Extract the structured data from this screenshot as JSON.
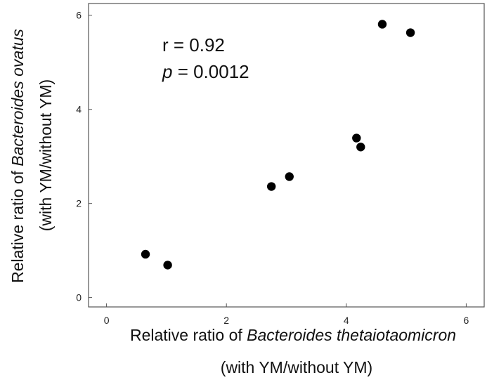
{
  "chart_data": {
    "type": "scatter",
    "title": "",
    "xlabel": {
      "line1_prefix": "Relative ratio of ",
      "line1_italic": "Bacteroides thetaiotaomicron",
      "line2": "(with YM/without YM)"
    },
    "ylabel": {
      "line1_prefix": "Relative ratio of ",
      "line1_italic": "Bacteroides ovatus",
      "line2": "(with YM/without YM)"
    },
    "xlim": [
      -0.3,
      6.3
    ],
    "ylim": [
      -0.2,
      6.25
    ],
    "x_ticks": [
      0,
      2,
      4,
      6
    ],
    "y_ticks": [
      0,
      2,
      4,
      6
    ],
    "x_tick_labels": [
      "0",
      "2",
      "4",
      "6"
    ],
    "y_tick_labels": [
      "0",
      "2",
      "4",
      "6"
    ],
    "grid": false,
    "legend": "none",
    "annotations": {
      "r_text": "r = 0.92",
      "p_label": "p",
      "p_value": " = 0.0012"
    },
    "series": [
      {
        "points": [
          {
            "x": 0.65,
            "y": 0.92
          },
          {
            "x": 1.02,
            "y": 0.69
          },
          {
            "x": 2.75,
            "y": 2.36
          },
          {
            "x": 3.05,
            "y": 2.57
          },
          {
            "x": 4.17,
            "y": 3.39
          },
          {
            "x": 4.24,
            "y": 3.2
          },
          {
            "x": 4.6,
            "y": 5.81
          },
          {
            "x": 5.07,
            "y": 5.63
          }
        ]
      }
    ],
    "marker_color": "#000000",
    "axis_color": "#555555"
  }
}
